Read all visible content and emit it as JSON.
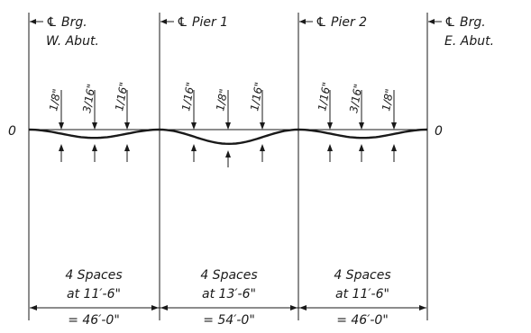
{
  "supports": [
    {
      "line1": "℄ Brg.",
      "line2": "W. Abut."
    },
    {
      "line1": "℄ Pier 1",
      "line2": ""
    },
    {
      "line1": "℄ Pier 2",
      "line2": ""
    },
    {
      "line1": "℄ Brg.",
      "line2": "E. Abut."
    }
  ],
  "zero_label": "0",
  "spans": [
    {
      "loads": [
        "1/8\"",
        "3/16\"",
        "1/16\""
      ],
      "line1": "4 Spaces",
      "line2": "at 11′-6\"",
      "line3": "= 46′-0\"",
      "sag": 0.42
    },
    {
      "loads": [
        "1/16\"",
        "1/8\"",
        "1/16\""
      ],
      "line1": "4 Spaces",
      "line2": "at 13′-6\"",
      "line3": "= 54′-0\"",
      "sag": 0.72
    },
    {
      "loads": [
        "1/16\"",
        "3/16\"",
        "1/8\""
      ],
      "line1": "4 Spaces",
      "line2": "at 11′-6\"",
      "line3": "= 46′-0\"",
      "sag": 0.42
    }
  ],
  "colors": {
    "ink": "#1a1a1a",
    "background": "#ffffff"
  }
}
